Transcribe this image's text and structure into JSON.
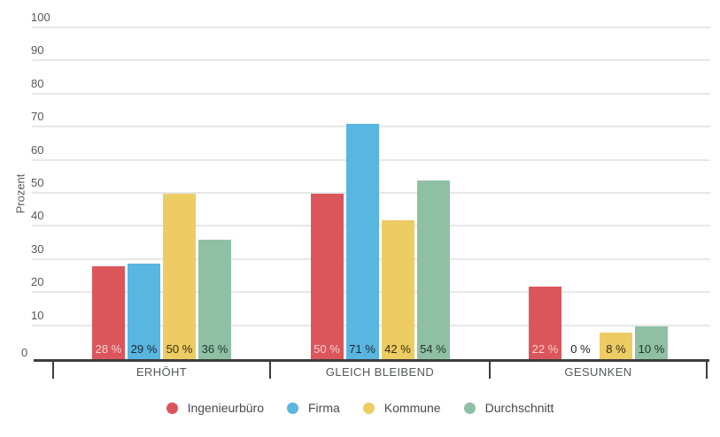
{
  "chart_data": {
    "type": "bar",
    "title": "",
    "xlabel": "",
    "ylabel": "Prozent",
    "ylim": [
      0,
      100
    ],
    "yticks": [
      0,
      10,
      20,
      30,
      40,
      50,
      60,
      70,
      80,
      90,
      100
    ],
    "grid": true,
    "legend_position": "bottom",
    "value_suffix": " %",
    "categories": [
      "ERHÖHT",
      "GLEICH BLEIBEND",
      "GESUNKEN"
    ],
    "series": [
      {
        "name": "Ingenieurbüro",
        "color": "#db565b",
        "label_text_color": "#f7d0d2",
        "values": [
          28,
          50,
          22
        ]
      },
      {
        "name": "Firma",
        "color": "#58b6e1",
        "label_text_color": "#1b2733",
        "values": [
          29,
          71,
          0
        ]
      },
      {
        "name": "Kommune",
        "color": "#edcc63",
        "label_text_color": "#332b14",
        "values": [
          50,
          42,
          8
        ]
      },
      {
        "name": "Durchschnitt",
        "color": "#90c0a4",
        "label_text_color": "#1d352a",
        "values": [
          36,
          54,
          10
        ]
      }
    ]
  },
  "colors": {
    "background": "#ffffff",
    "gridline": "#e7e7e7",
    "axis_line": "#3d3d3d",
    "axis_text": "#55585c",
    "legend_text": "#46494d",
    "zero_label_text": "#202326"
  }
}
